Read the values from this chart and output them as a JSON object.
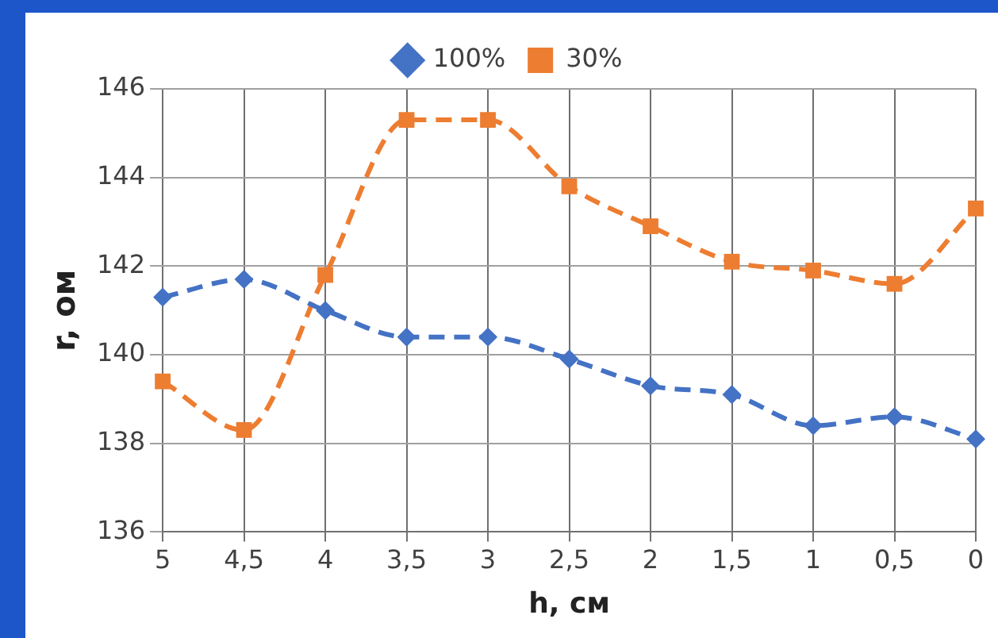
{
  "chart_data": {
    "type": "line",
    "xlabel": "h, см",
    "ylabel": "r, ом",
    "categories": [
      "5",
      "4,5",
      "4",
      "3,5",
      "3",
      "2,5",
      "2",
      "1,5",
      "1",
      "0,5",
      "0"
    ],
    "series": [
      {
        "name": "100%",
        "color": "#4472c4",
        "marker": "diamond",
        "values": [
          141.3,
          141.7,
          141.0,
          140.4,
          140.4,
          139.9,
          139.3,
          139.1,
          138.4,
          138.6,
          138.1
        ]
      },
      {
        "name": "30%",
        "color": "#ed7d31",
        "marker": "square",
        "values": [
          139.4,
          138.3,
          141.8,
          145.3,
          145.3,
          143.8,
          142.9,
          142.1,
          141.9,
          141.6,
          143.3
        ]
      }
    ],
    "ylim": [
      136,
      146
    ],
    "yticks": [
      136,
      138,
      140,
      142,
      144,
      146
    ],
    "grid": true,
    "legend": "top",
    "line_style": "dashed"
  }
}
